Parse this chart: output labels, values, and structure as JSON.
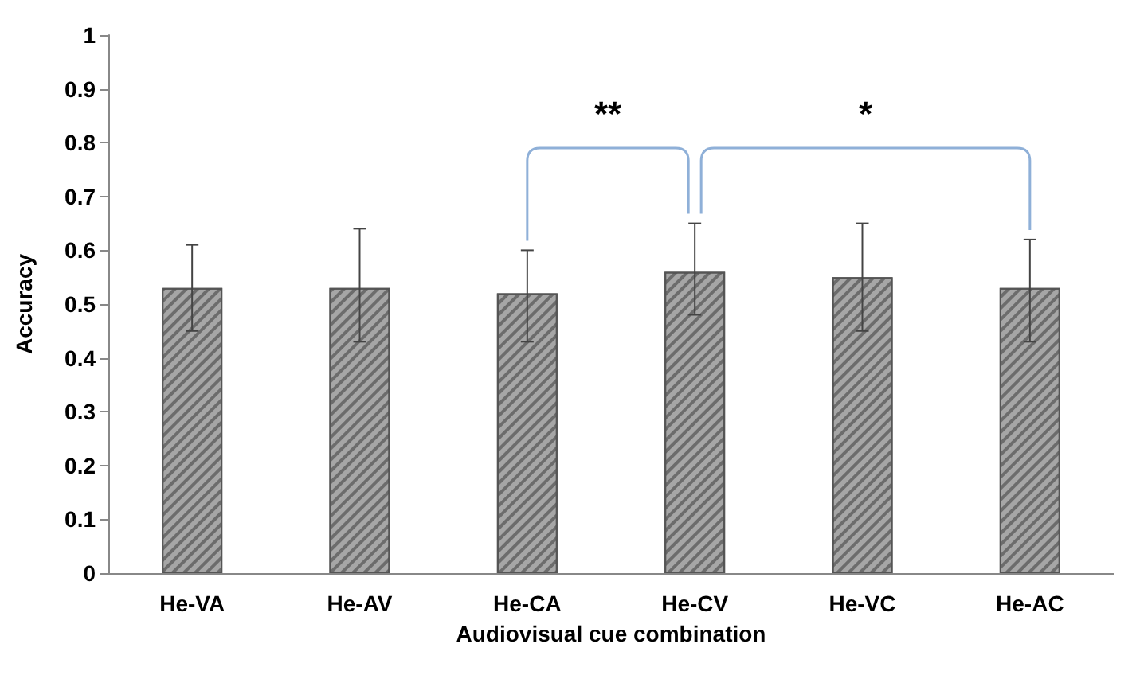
{
  "chart_data": {
    "type": "bar",
    "xlabel": "Audiovisual cue combination",
    "ylabel": "Accuracy",
    "categories": [
      "He-VA",
      "He-AV",
      "He-CA",
      "He-CV",
      "He-VC",
      "He-AC"
    ],
    "values": [
      0.53,
      0.53,
      0.52,
      0.56,
      0.55,
      0.53
    ],
    "errors": [
      [
        0.45,
        0.61
      ],
      [
        0.43,
        0.64
      ],
      [
        0.43,
        0.6
      ],
      [
        0.48,
        0.65
      ],
      [
        0.45,
        0.65
      ],
      [
        0.43,
        0.62
      ]
    ],
    "color": "#a6a6a6",
    "ylim": [
      0,
      1
    ],
    "yticks": [
      0,
      0.1,
      0.2,
      0.3,
      0.4,
      0.5,
      0.6,
      0.7,
      0.8,
      0.9,
      1
    ],
    "grid": false,
    "annotations": [
      "**",
      "*"
    ]
  }
}
